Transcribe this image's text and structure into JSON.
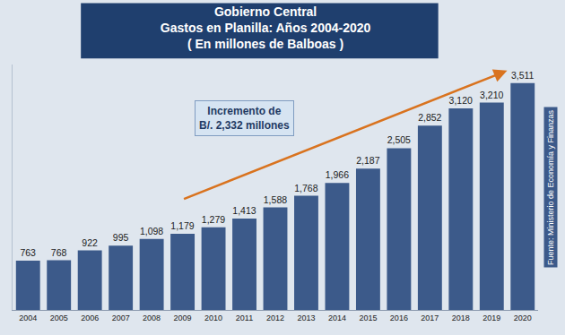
{
  "chart_data": {
    "type": "bar",
    "title": "Gobierno Central",
    "subtitle": "Gastos en Planilla: Años 2004-2020",
    "annotations": [
      "( En millones de Balboas )",
      [
        "Incremento de",
        "B/. 2,332 millones"
      ],
      "Fuente: Ministerio de Economía y Finanzas"
    ],
    "categories": [
      "2004",
      "2005",
      "2006",
      "2007",
      "2008",
      "2009",
      "2010",
      "2011",
      "2012",
      "2013",
      "2014",
      "2015",
      "2016",
      "2017",
      "2018",
      "2019",
      "2020"
    ],
    "values": [
      763,
      768,
      922,
      995,
      1098,
      1179,
      1279,
      1413,
      1588,
      1768,
      1966,
      2187,
      2505,
      2852,
      3120,
      3210,
      3511
    ],
    "value_labels": [
      "763",
      "768",
      "922",
      "995",
      "1,098",
      "1,179",
      "1,279",
      "1,413",
      "1,588",
      "1,768",
      "1,966",
      "2,187",
      "2,505",
      "2,852",
      "3,120",
      "3,210",
      "3,511"
    ],
    "color": "#3c5a8a",
    "ylim": [
      0,
      3800
    ],
    "yticks": [],
    "grid": false,
    "data_labels": true,
    "tick_labels": "x"
  }
}
